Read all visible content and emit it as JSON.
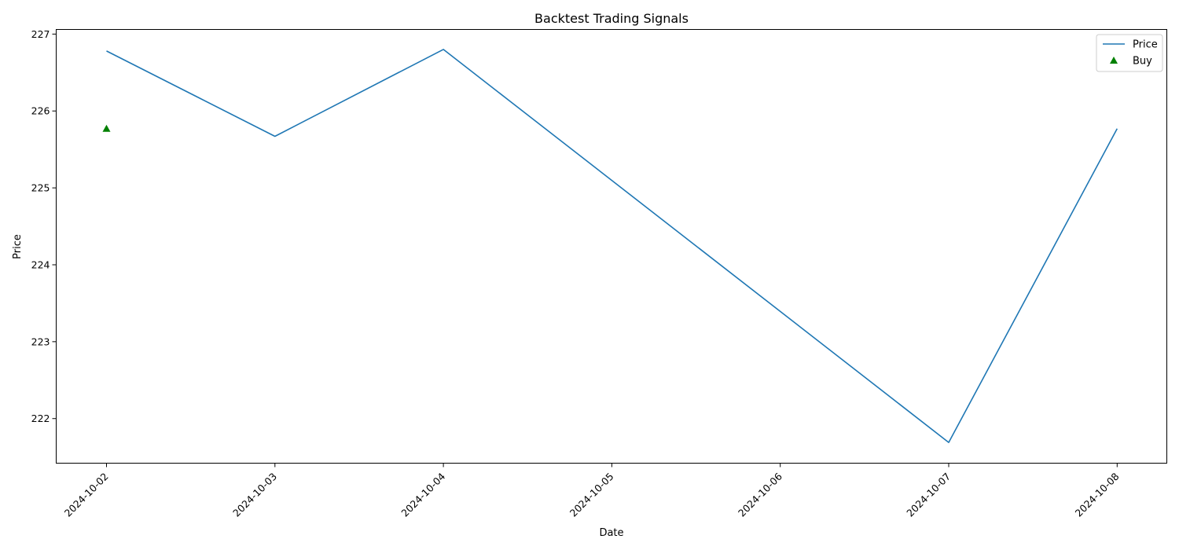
{
  "chart_data": {
    "type": "line",
    "title": "Backtest Trading Signals",
    "xlabel": "Date",
    "ylabel": "Price",
    "x": [
      "2024-10-02",
      "2024-10-03",
      "2024-10-04",
      "2024-10-05",
      "2024-10-06",
      "2024-10-07",
      "2024-10-08"
    ],
    "x_tick_labels": [
      "2024-10-02",
      "2024-10-03",
      "2024-10-04",
      "2024-10-05",
      "2024-10-06",
      "2024-10-07",
      "2024-10-08"
    ],
    "y_ticks": [
      222,
      223,
      224,
      225,
      226,
      227
    ],
    "ylim": [
      221.42,
      227.06
    ],
    "grid": false,
    "legend_position": "top-right",
    "series": [
      {
        "name": "Price",
        "kind": "line",
        "color": "#1f77b4",
        "points": [
          {
            "x": "2024-10-02",
            "y": 226.78
          },
          {
            "x": "2024-10-03",
            "y": 225.67
          },
          {
            "x": "2024-10-04",
            "y": 226.8
          },
          {
            "x": "2024-10-07",
            "y": 221.69
          },
          {
            "x": "2024-10-08",
            "y": 225.77
          }
        ]
      },
      {
        "name": "Buy",
        "kind": "scatter",
        "marker": "triangle-up",
        "color": "#008000",
        "points": [
          {
            "x": "2024-10-02",
            "y": 225.77
          }
        ]
      }
    ]
  }
}
